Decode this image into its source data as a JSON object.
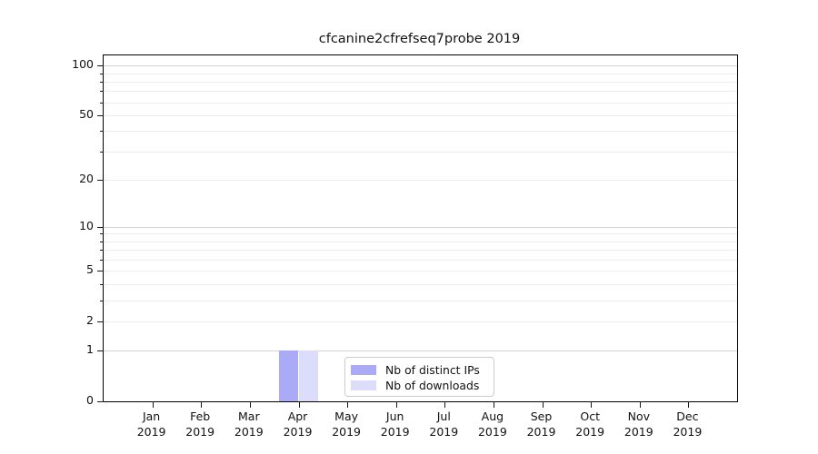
{
  "chart_data": {
    "type": "bar",
    "title": "cfcanine2cfrefseq7probe 2019",
    "xlabel": "",
    "ylabel": "",
    "months": [
      {
        "m": "Jan",
        "y": "2019"
      },
      {
        "m": "Feb",
        "y": "2019"
      },
      {
        "m": "Mar",
        "y": "2019"
      },
      {
        "m": "Apr",
        "y": "2019"
      },
      {
        "m": "May",
        "y": "2019"
      },
      {
        "m": "Jun",
        "y": "2019"
      },
      {
        "m": "Jul",
        "y": "2019"
      },
      {
        "m": "Aug",
        "y": "2019"
      },
      {
        "m": "Sep",
        "y": "2019"
      },
      {
        "m": "Oct",
        "y": "2019"
      },
      {
        "m": "Nov",
        "y": "2019"
      },
      {
        "m": "Dec",
        "y": "2019"
      }
    ],
    "series": [
      {
        "name": "Nb of distinct IPs",
        "color": "#aaaaf6",
        "values": [
          0,
          0,
          0,
          1,
          0,
          0,
          0,
          0,
          0,
          0,
          0,
          0
        ]
      },
      {
        "name": "Nb of downloads",
        "color": "#dcdcfb",
        "values": [
          0,
          0,
          0,
          1,
          0,
          0,
          0,
          0,
          0,
          0,
          0,
          0
        ]
      }
    ],
    "yscale": "log1p",
    "ylim": [
      0,
      115
    ],
    "yticks": [
      {
        "label": "100",
        "value": 100
      },
      {
        "label": "50",
        "value": 50
      },
      {
        "label": "20",
        "value": 20
      },
      {
        "label": "10",
        "value": 10
      },
      {
        "label": "5",
        "value": 5
      },
      {
        "label": "2",
        "value": 2
      },
      {
        "label": "1",
        "value": 1
      },
      {
        "label": "0",
        "value": 0
      }
    ],
    "y_major_gridlines": [
      1,
      10,
      100
    ],
    "y_minor_gridlines": [
      2,
      3,
      4,
      5,
      6,
      7,
      8,
      9,
      20,
      30,
      40,
      50,
      60,
      70,
      80,
      90
    ],
    "grid": "horizontal",
    "legend": {
      "position": "lower center inside",
      "entries": [
        "Nb of distinct IPs",
        "Nb of downloads"
      ]
    },
    "colors": {
      "grid_major": "#d2d2d2",
      "grid_minor": "#ededed",
      "spine": "#000000",
      "text": "#111111",
      "legend_border": "#cccccc"
    }
  }
}
